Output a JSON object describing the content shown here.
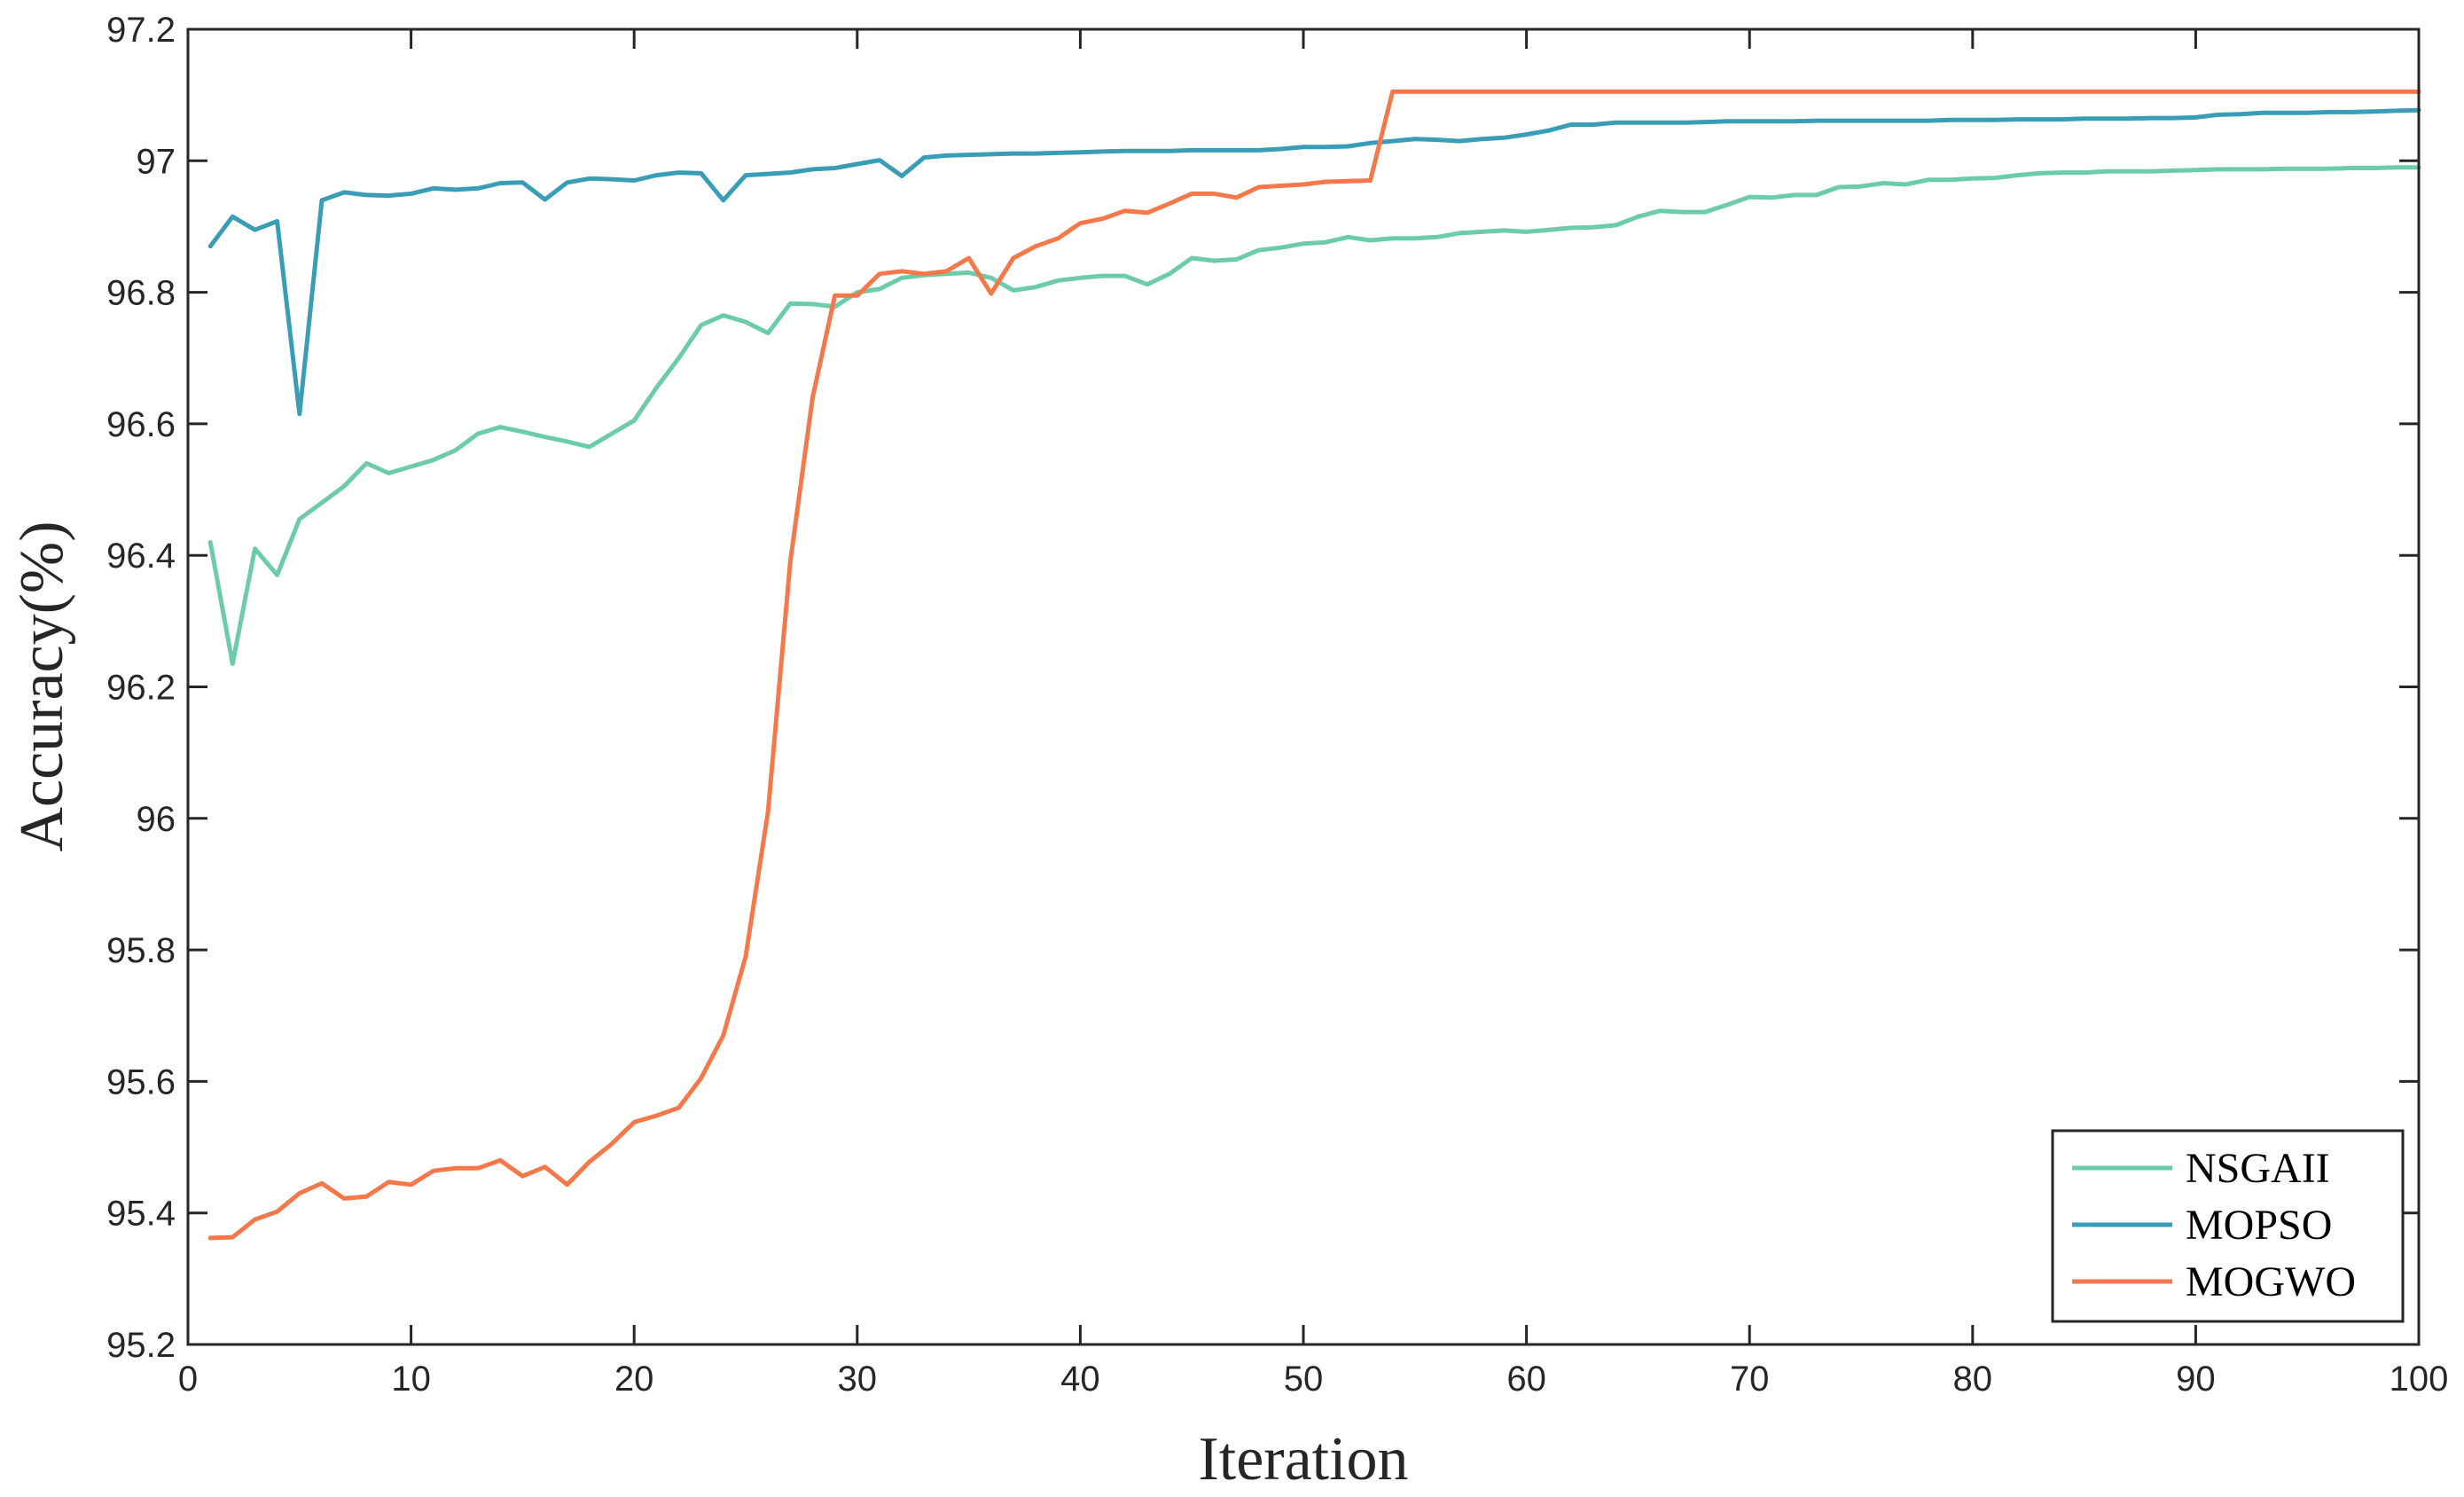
{
  "chart_data": {
    "type": "line",
    "xlabel": "Iteration",
    "ylabel": "Accuracy(%)",
    "xlim": [
      0,
      100
    ],
    "ylim": [
      95.2,
      97.2
    ],
    "xticks": [
      "0",
      "10",
      "20",
      "30",
      "40",
      "50",
      "60",
      "70",
      "80",
      "90",
      "100"
    ],
    "yticks": [
      "95.2",
      "95.4",
      "95.6",
      "95.8",
      "96",
      "96.2",
      "96.4",
      "96.6",
      "96.8",
      "97",
      "97.2"
    ],
    "grid": false,
    "legend_position": "bottom-right",
    "x": [
      1,
      2,
      3,
      4,
      5,
      6,
      7,
      8,
      9,
      10,
      11,
      12,
      13,
      14,
      15,
      16,
      17,
      18,
      19,
      20,
      21,
      22,
      23,
      24,
      25,
      26,
      27,
      28,
      29,
      30,
      31,
      32,
      33,
      34,
      35,
      36,
      37,
      38,
      39,
      40,
      41,
      42,
      43,
      44,
      45,
      46,
      47,
      48,
      49,
      50,
      51,
      52,
      53,
      54,
      55,
      56,
      57,
      58,
      59,
      60,
      61,
      62,
      63,
      64,
      65,
      66,
      67,
      68,
      69,
      70,
      71,
      72,
      73,
      74,
      75,
      76,
      77,
      78,
      79,
      80,
      81,
      82,
      83,
      84,
      85,
      86,
      87,
      88,
      89,
      90,
      91,
      92,
      93,
      94,
      95,
      96,
      97,
      98,
      99,
      100
    ],
    "series": [
      {
        "name": "NSGAII",
        "color": "#6CCBA8",
        "values": [
          96.42,
          96.235,
          96.41,
          96.37,
          96.455,
          96.48,
          96.505,
          96.54,
          96.525,
          96.535,
          96.545,
          96.56,
          96.585,
          96.595,
          96.588,
          96.58,
          96.573,
          96.565,
          96.585,
          96.605,
          96.655,
          96.7,
          96.75,
          96.765,
          96.755,
          96.738,
          96.783,
          96.782,
          96.778,
          96.8,
          96.805,
          96.822,
          96.826,
          96.828,
          96.83,
          96.822,
          96.803,
          96.808,
          96.818,
          96.822,
          96.825,
          96.825,
          96.812,
          96.828,
          96.852,
          96.848,
          96.85,
          96.864,
          96.868,
          96.874,
          96.876,
          96.884,
          96.879,
          96.882,
          96.882,
          96.884,
          96.89,
          96.892,
          96.894,
          96.892,
          96.895,
          96.898,
          96.899,
          96.902,
          96.915,
          96.924,
          96.922,
          96.922,
          96.933,
          96.945,
          96.944,
          96.948,
          96.948,
          96.96,
          96.961,
          96.966,
          96.964,
          96.971,
          96.971,
          96.973,
          96.974,
          96.978,
          96.981,
          96.982,
          96.982,
          96.984,
          96.984,
          96.984,
          96.985,
          96.986,
          96.987,
          96.987,
          96.987,
          96.988,
          96.988,
          96.988,
          96.989,
          96.989,
          96.99,
          96.99
        ]
      },
      {
        "name": "MOPSO",
        "color": "#3A9DB6",
        "values": [
          96.87,
          96.915,
          96.895,
          96.908,
          96.615,
          96.94,
          96.952,
          96.948,
          96.947,
          96.95,
          96.958,
          96.956,
          96.958,
          96.966,
          96.967,
          96.941,
          96.967,
          96.973,
          96.972,
          96.97,
          96.978,
          96.982,
          96.981,
          96.94,
          96.978,
          96.98,
          96.982,
          96.987,
          96.989,
          96.995,
          97.001,
          96.977,
          97.005,
          97.008,
          97.009,
          97.01,
          97.011,
          97.011,
          97.012,
          97.013,
          97.014,
          97.015,
          97.015,
          97.015,
          97.016,
          97.016,
          97.016,
          97.016,
          97.018,
          97.021,
          97.021,
          97.022,
          97.027,
          97.03,
          97.033,
          97.032,
          97.03,
          97.033,
          97.035,
          97.04,
          97.046,
          97.055,
          97.055,
          97.058,
          97.058,
          97.058,
          97.058,
          97.059,
          97.06,
          97.06,
          97.06,
          97.06,
          97.061,
          97.061,
          97.061,
          97.061,
          97.061,
          97.061,
          97.062,
          97.062,
          97.062,
          97.063,
          97.063,
          97.063,
          97.064,
          97.064,
          97.064,
          97.065,
          97.065,
          97.066,
          97.07,
          97.071,
          97.073,
          97.073,
          97.073,
          97.074,
          97.074,
          97.075,
          97.076,
          97.077
        ]
      },
      {
        "name": "MOGWO",
        "color": "#F5784A",
        "values": [
          95.362,
          95.363,
          95.39,
          95.402,
          95.43,
          95.445,
          95.422,
          95.425,
          95.447,
          95.443,
          95.464,
          95.468,
          95.468,
          95.48,
          95.456,
          95.47,
          95.443,
          95.478,
          95.505,
          95.538,
          95.548,
          95.56,
          95.605,
          95.67,
          95.79,
          96.01,
          96.39,
          96.64,
          96.795,
          96.795,
          96.828,
          96.832,
          96.828,
          96.832,
          96.852,
          96.798,
          96.852,
          96.87,
          96.882,
          96.905,
          96.912,
          96.924,
          96.921,
          96.935,
          96.95,
          96.95,
          96.944,
          96.96,
          96.962,
          96.964,
          96.968,
          96.969,
          96.97,
          97.105,
          97.105,
          97.105,
          97.105,
          97.105,
          97.105,
          97.105,
          97.105,
          97.105,
          97.105,
          97.105,
          97.105,
          97.105,
          97.105,
          97.105,
          97.105,
          97.105,
          97.105,
          97.105,
          97.105,
          97.105,
          97.105,
          97.105,
          97.105,
          97.105,
          97.105,
          97.105,
          97.105,
          97.105,
          97.105,
          97.105,
          97.105,
          97.105,
          97.105,
          97.105,
          97.105,
          97.105,
          97.105,
          97.105,
          97.105,
          97.105,
          97.105,
          97.105,
          97.105,
          97.105,
          97.105,
          97.105
        ]
      }
    ]
  }
}
